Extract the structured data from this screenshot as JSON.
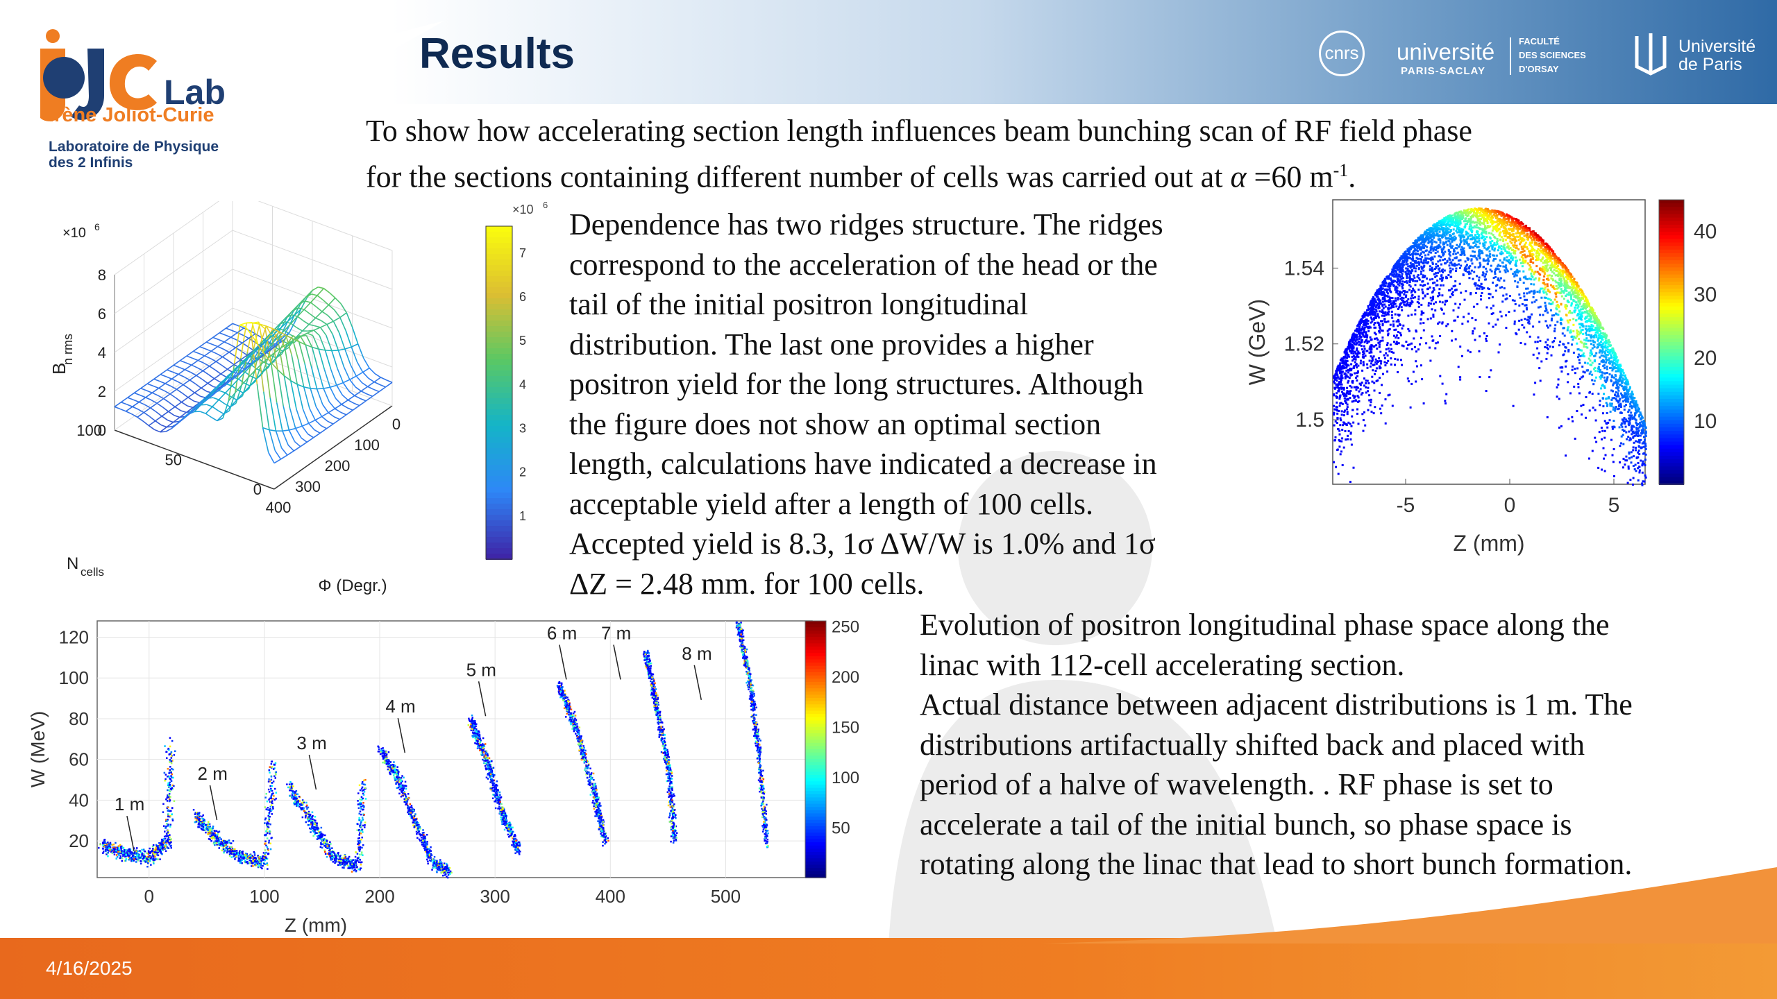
{
  "slide": {
    "title": "Results",
    "date": "4/16/2025",
    "intro_line1": "To show how accelerating section length influences beam bunching scan of RF field phase",
    "intro_line2_a": "for the sections containing different number of cells was carried out at ",
    "intro_alpha": "α",
    "intro_line2_b": " =60 m",
    "intro_sup": "-1",
    "intro_end": ".",
    "para1": [
      "Dependence has two ridges structure. The ridges",
      "correspond to the acceleration of the head or the",
      "tail of the initial positron longitudinal",
      "distribution. The last one provides a higher",
      "positron yield for the long structures. Although",
      "the figure does not show an optimal section",
      "length, calculations have indicated a decrease in",
      "acceptable yield after a length of 100 cells.",
      "Accepted yield is 8.3, 1σ ΔW/W is 1.0% and 1σ",
      "ΔZ = 2.48 mm. for 100 cells."
    ],
    "para2": [
      "Evolution of positron longitudinal phase space along the",
      "linac with 112-cell accelerating section.",
      "Actual distance between adjacent distributions is 1 m. The",
      "distributions artifactually shifted back and placed with",
      "period of a halve of wavelength. . RF phase is set to",
      "accelerate a tail of the initial bunch, so phase space is",
      "rotating along the linac that lead to short bunch formation."
    ]
  },
  "logos": {
    "ijclab_main": "IJCLab",
    "ijclab_name": "Irène Joliot-Curie",
    "ijclab_sub1": "Laboratoire de Physique",
    "ijclab_sub2": "des 2 Infinis",
    "cnrs": "cnrs",
    "ups_1": "université",
    "ups_2": "PARIS-SACLAY",
    "fac_1": "FACULTÉ",
    "fac_2": "DES SCIENCES",
    "fac_3": "D'ORSAY",
    "up_1": "Université",
    "up_2": "de Paris"
  },
  "colors": {
    "title": "#0f2a52",
    "footer": "#ef7d22",
    "header_blue": "#2f6aa6"
  },
  "chart_data": [
    {
      "type": "surface3d",
      "title": "",
      "zlabel": "B",
      "zlabel_sub": "n rms",
      "zscale": "×10",
      "zscale_exp": "6",
      "zticks": [
        "0",
        "2",
        "4",
        "6",
        "8"
      ],
      "xlabel": "Φ (Degr.)",
      "xticks": [
        "400",
        "300",
        "200",
        "100",
        "0"
      ],
      "ylabel": "N",
      "ylabel_sub": "cells",
      "yticks": [
        "0",
        "50",
        "100"
      ],
      "colorbar_scale": "×10",
      "colorbar_exp": "6",
      "colorbar_ticks": [
        "1",
        "2",
        "3",
        "4",
        "5",
        "6",
        "7"
      ],
      "peak_value": 7.5,
      "peak_units": "×10^6"
    },
    {
      "type": "scatter",
      "title": "",
      "xlabel": "Z (mm)",
      "ylabel": "W (GeV)",
      "xticks": [
        "-5",
        "0",
        "5"
      ],
      "yticks": [
        "1.5",
        "1.52",
        "1.54"
      ],
      "xlim": [
        -8.5,
        6.5
      ],
      "ylim": [
        1.483,
        1.558
      ],
      "colorbar_ticks": [
        "10",
        "20",
        "30",
        "40"
      ],
      "clim": [
        0,
        45
      ]
    },
    {
      "type": "scatter",
      "title": "",
      "xlabel": "Z (mm)",
      "ylabel": "W (MeV)",
      "xticks": [
        "0",
        "100",
        "200",
        "300",
        "400",
        "500"
      ],
      "yticks": [
        "20",
        "40",
        "60",
        "80",
        "100",
        "120"
      ],
      "xlim": [
        -45,
        575
      ],
      "ylim": [
        2,
        128
      ],
      "colorbar_ticks": [
        "50",
        "100",
        "150",
        "200",
        "250"
      ],
      "clim": [
        0,
        255
      ],
      "annotations": [
        {
          "label": "1 m",
          "x": -30,
          "y": 35
        },
        {
          "label": "2 m",
          "x": 42,
          "y": 50
        },
        {
          "label": "3 m",
          "x": 128,
          "y": 65
        },
        {
          "label": "4 m",
          "x": 205,
          "y": 83
        },
        {
          "label": "5 m",
          "x": 275,
          "y": 101
        },
        {
          "label": "6 m",
          "x": 345,
          "y": 119
        },
        {
          "label": "7 m",
          "x": 392,
          "y": 119
        },
        {
          "label": "8 m",
          "x": 462,
          "y": 109
        }
      ],
      "series": [
        {
          "x": [
            -40,
            -20,
            0,
            15,
            18
          ],
          "y": [
            18,
            14,
            12,
            20,
            68
          ]
        },
        {
          "x": [
            40,
            60,
            80,
            100,
            108
          ],
          "y": [
            33,
            20,
            12,
            10,
            60
          ]
        },
        {
          "x": [
            120,
            140,
            160,
            180,
            185
          ],
          "y": [
            48,
            30,
            12,
            8,
            50
          ]
        },
        {
          "x": [
            200,
            215,
            230,
            245,
            260
          ],
          "y": [
            65,
            52,
            30,
            10,
            5
          ]
        },
        {
          "x": [
            278,
            292,
            305,
            320
          ],
          "y": [
            80,
            60,
            35,
            15
          ]
        },
        {
          "x": [
            355,
            370,
            385,
            395
          ],
          "y": [
            97,
            75,
            45,
            20
          ]
        },
        {
          "x": [
            430,
            440,
            450,
            455
          ],
          "y": [
            113,
            85,
            55,
            20
          ]
        },
        {
          "x": [
            510,
            520,
            528,
            535
          ],
          "y": [
            128,
            100,
            65,
            18
          ]
        }
      ]
    }
  ]
}
